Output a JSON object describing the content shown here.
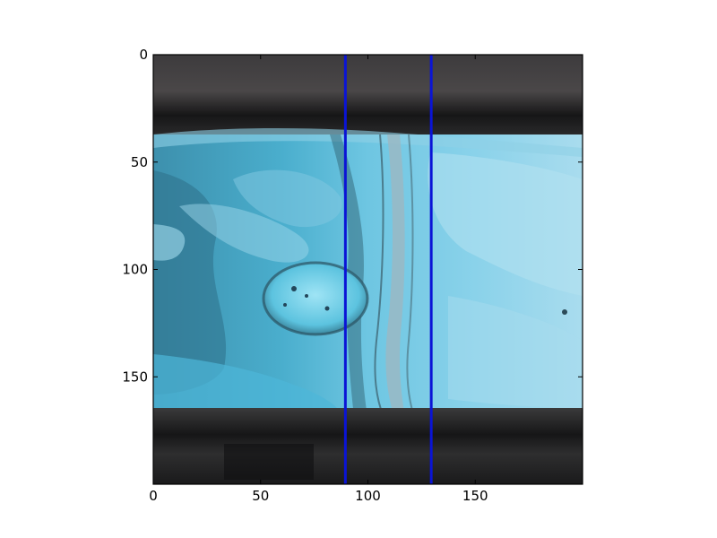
{
  "chart_data": {
    "type": "image",
    "xlim": [
      0,
      199
    ],
    "ylim": [
      199,
      0
    ],
    "x_ticks": [
      0,
      50,
      100,
      150
    ],
    "y_ticks": [
      0,
      50,
      100,
      150
    ],
    "vertical_lines": [
      {
        "x": 89,
        "color": "#0a14d6"
      },
      {
        "x": 129,
        "color": "#0a14d6"
      }
    ],
    "image_description_colors": {
      "dark_band": "#3a3a3c",
      "pipe_base": "#4fb8d8",
      "pipe_light": "#8ed4ea",
      "pipe_dark": "#2e6f88",
      "weld_seam": "#a8c4cf"
    }
  }
}
